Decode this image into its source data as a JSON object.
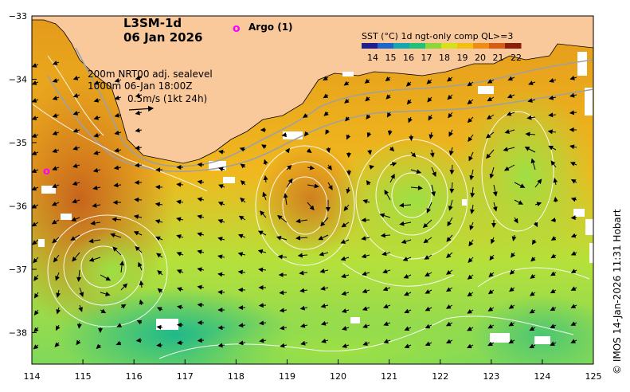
{
  "title": {
    "product": "L3SM-1d",
    "date": "06 Jan 2026"
  },
  "argo": {
    "marker": "o",
    "label": "Argo (1)",
    "color": "#ff00ff"
  },
  "overlay_info": {
    "line1": "200m  NRT00 adj. sealevel",
    "line2": "1000m 06-Jan 18:00Z",
    "line3": "0.5m/s (1kt 24h)"
  },
  "colorbar": {
    "title": "SST (°C) 1d ngt-only comp QL>=3",
    "ticks": [
      "14",
      "15",
      "16",
      "17",
      "18",
      "19",
      "20",
      "21",
      "22"
    ],
    "colors": [
      "#1f1f8f",
      "#1e66cc",
      "#11a8b4",
      "#1fc27a",
      "#8fd63a",
      "#d6e01c",
      "#f2c012",
      "#ef8c14",
      "#d45c14",
      "#8c1e0c"
    ]
  },
  "axes": {
    "x_ticks": [
      "114",
      "115",
      "116",
      "117",
      "118",
      "119",
      "120",
      "121",
      "122",
      "123",
      "124",
      "125"
    ],
    "y_ticks": [
      "−33",
      "−34",
      "−35",
      "−36",
      "−37",
      "−38"
    ]
  },
  "colors": {
    "land": "#f9c89b",
    "warm": "#e08a14",
    "cool": "#9fe040",
    "coastline": "#000000"
  },
  "credit": "© IMOS 14-Jan-2026 11:31 Hobart"
}
